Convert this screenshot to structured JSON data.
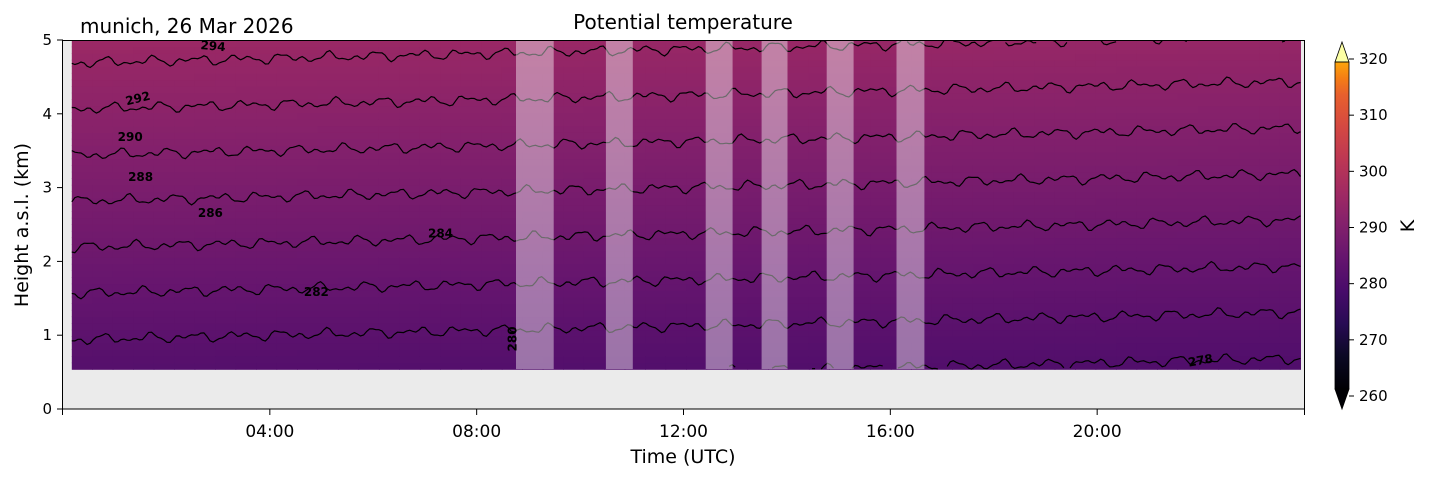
{
  "chart_data": {
    "type": "heatmap",
    "title": "Potential temperature",
    "subtitle": "munich, 26 Mar 2026",
    "xlabel": "Time (UTC)",
    "ylabel": "Height a.s.l. (km)",
    "xlim_hours": [
      0,
      24
    ],
    "ylim": [
      0,
      5
    ],
    "x_tick_labels": [
      "04:00",
      "08:00",
      "12:00",
      "16:00",
      "20:00"
    ],
    "x_tick_hours": [
      4,
      8,
      12,
      16,
      20
    ],
    "y_tick_labels": [
      "0",
      "1",
      "2",
      "3",
      "4",
      "5"
    ],
    "y_ticks": [
      0,
      1,
      2,
      3,
      4,
      5
    ],
    "data_bottom_km": 0.54,
    "data_start_hour": 0.17,
    "data_end_hour": 23.93,
    "colorbar": {
      "label": "K",
      "colormap": "inferno",
      "range": [
        260,
        320
      ],
      "tick_labels": [
        "260",
        "270",
        "280",
        "290",
        "300",
        "310",
        "320"
      ],
      "ticks": [
        260,
        270,
        280,
        290,
        300,
        310,
        320
      ],
      "extend": "both"
    },
    "surface_temp_K": 279,
    "lapse_K_per_km": 3.2,
    "trend_K_per_day": -1.2,
    "contour_levels": [
      278,
      280,
      282,
      284,
      286,
      288,
      290,
      292,
      294
    ],
    "contour_labels": [
      {
        "text": "294",
        "hour": 2.9,
        "km": 4.91,
        "angle": 5
      },
      {
        "text": "292",
        "hour": 1.45,
        "km": 4.2,
        "angle": -14
      },
      {
        "text": "290",
        "hour": 1.3,
        "km": 3.68,
        "angle": 0
      },
      {
        "text": "288",
        "hour": 1.5,
        "km": 3.14,
        "angle": 0
      },
      {
        "text": "286",
        "hour": 2.85,
        "km": 2.65,
        "angle": 0
      },
      {
        "text": "284",
        "hour": 7.3,
        "km": 2.37,
        "angle": 0
      },
      {
        "text": "282",
        "hour": 4.9,
        "km": 1.58,
        "angle": 0
      },
      {
        "text": "280",
        "hour": 8.7,
        "km": 0.95,
        "angle": -90
      },
      {
        "text": "278",
        "hour": 22.0,
        "km": 0.65,
        "angle": -10
      }
    ],
    "missing_periods_hours": [
      [
        8.76,
        9.49
      ],
      [
        10.5,
        11.02
      ],
      [
        12.43,
        12.95
      ],
      [
        13.51,
        14.01
      ],
      [
        14.77,
        15.29
      ],
      [
        16.12,
        16.66
      ]
    ],
    "colors": {
      "missing_fill": "#ebebeb",
      "band_overlay": "#ffffff",
      "contour": "#000000"
    }
  }
}
